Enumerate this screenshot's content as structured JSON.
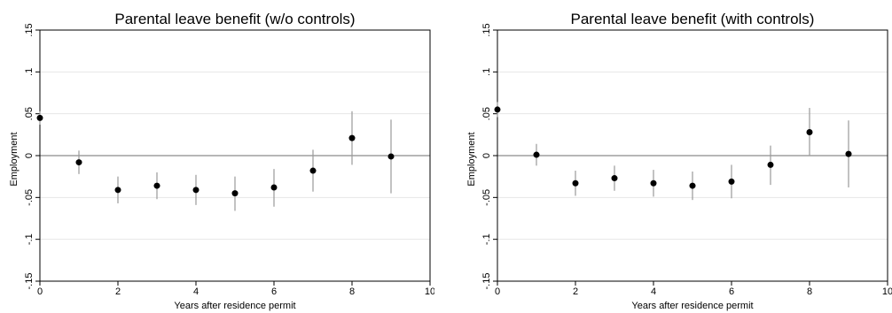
{
  "chart_data": [
    {
      "type": "scatter",
      "title": "Parental leave benefit (w/o controls)",
      "xlabel": "Years after residence permit",
      "ylabel": "Employment",
      "xlim": [
        0,
        10
      ],
      "ylim": [
        -0.15,
        0.15
      ],
      "xticks": [
        0,
        2,
        4,
        6,
        8,
        10
      ],
      "xtick_labels": [
        "0",
        "2",
        "4",
        "6",
        "8",
        "10"
      ],
      "yticks": [
        -0.15,
        -0.1,
        -0.05,
        0,
        0.05,
        0.1,
        0.15
      ],
      "ytick_labels": [
        "-.15",
        "-.1",
        "-.05",
        "0",
        ".05",
        ".1",
        ".15"
      ],
      "grid": true,
      "reference_line_y": 0,
      "x": [
        0,
        1,
        2,
        3,
        4,
        5,
        6,
        7,
        8,
        9
      ],
      "y": [
        0.045,
        -0.008,
        -0.041,
        -0.036,
        -0.041,
        -0.045,
        -0.038,
        -0.018,
        0.021,
        -0.001
      ],
      "ci_low": [
        0.037,
        -0.022,
        -0.057,
        -0.052,
        -0.059,
        -0.066,
        -0.061,
        -0.043,
        -0.011,
        -0.045
      ],
      "ci_high": [
        0.053,
        0.006,
        -0.025,
        -0.02,
        -0.023,
        -0.025,
        -0.016,
        0.007,
        0.053,
        0.043
      ]
    },
    {
      "type": "scatter",
      "title": "Parental leave benefit (with controls)",
      "xlabel": "Years after residence permit",
      "ylabel": "Employment",
      "xlim": [
        0,
        10
      ],
      "ylim": [
        -0.15,
        0.15
      ],
      "xticks": [
        0,
        2,
        4,
        6,
        8,
        10
      ],
      "xtick_labels": [
        "0",
        "2",
        "4",
        "6",
        "8",
        "10"
      ],
      "yticks": [
        -0.15,
        -0.1,
        -0.05,
        0,
        0.05,
        0.1,
        0.15
      ],
      "ytick_labels": [
        "-.15",
        "-.1",
        "-.05",
        "0",
        ".05",
        ".1",
        ".15"
      ],
      "grid": true,
      "reference_line_y": 0,
      "x": [
        0,
        1,
        2,
        3,
        4,
        5,
        6,
        7,
        8,
        9
      ],
      "y": [
        0.055,
        0.001,
        -0.033,
        -0.027,
        -0.033,
        -0.036,
        -0.031,
        -0.011,
        0.028,
        0.002
      ],
      "ci_low": [
        0.046,
        -0.012,
        -0.048,
        -0.042,
        -0.049,
        -0.053,
        -0.051,
        -0.035,
        0.0,
        -0.038
      ],
      "ci_high": [
        0.064,
        0.014,
        -0.018,
        -0.012,
        -0.017,
        -0.019,
        -0.011,
        0.012,
        0.057,
        0.042
      ]
    }
  ],
  "colors": {
    "point": "#000000",
    "ci": "#999999",
    "reference_line": "#8c8c8c",
    "grid": "#e6e6e6",
    "axis": "#000000"
  }
}
